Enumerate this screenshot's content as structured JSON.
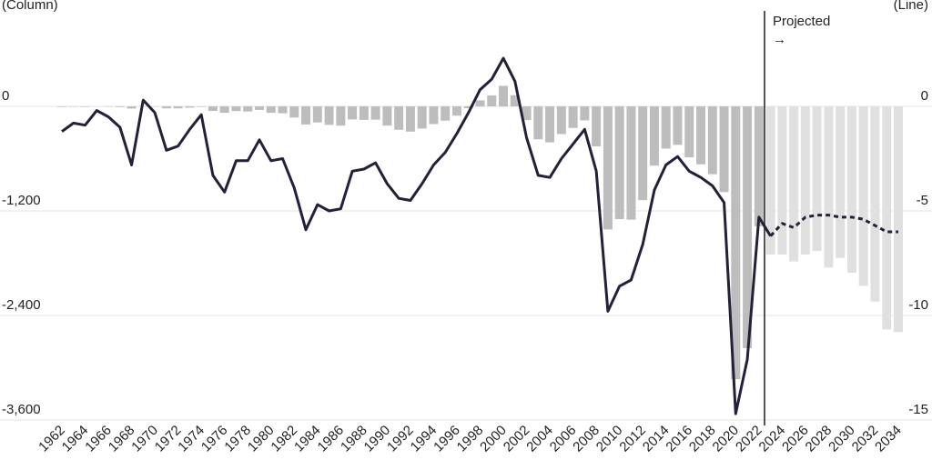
{
  "chart_data": {
    "type": "bar-line",
    "y_label": "(Column)",
    "y2_label": "(Line)",
    "annotation": {
      "text": "Projected",
      "arrow": "→"
    },
    "categories": [
      "1962",
      null,
      "1964",
      null,
      "1966",
      null,
      "1968",
      null,
      "1970",
      null,
      "1972",
      null,
      "1974",
      null,
      "1976",
      null,
      "1978",
      null,
      "1980",
      null,
      "1982",
      null,
      "1984",
      null,
      "1986",
      null,
      "1988",
      null,
      "1990",
      null,
      "1992",
      null,
      "1994",
      null,
      "1996",
      null,
      "1998",
      null,
      "2000",
      null,
      "2002",
      null,
      "2004",
      null,
      "2006",
      null,
      "2008",
      null,
      "2010",
      null,
      "2012",
      null,
      "2014",
      null,
      "2016",
      null,
      "2018",
      null,
      "2020",
      null,
      "2022",
      null,
      "2024",
      null,
      "2026",
      null,
      "2028",
      null,
      "2030",
      null,
      "2032",
      null,
      "2034"
    ],
    "series": [
      {
        "kind": "column",
        "color": "#bdbdbd",
        "values": [
          -7,
          -5,
          -6,
          -1,
          -4,
          -9,
          -25,
          3,
          -3,
          -23,
          -23,
          -15,
          -6,
          -53,
          -74,
          -54,
          -59,
          -41,
          -74,
          -79,
          -128,
          -208,
          -185,
          -212,
          -221,
          -150,
          -155,
          -153,
          -221,
          -269,
          -290,
          -255,
          -203,
          -164,
          -107,
          -22,
          69,
          126,
          236,
          128,
          -158,
          -378,
          -413,
          -318,
          -248,
          -161,
          -459,
          -1413,
          -1294,
          -1300,
          -1077,
          -680,
          -485,
          -442,
          -585,
          -665,
          -779,
          -984,
          -3132,
          -2775,
          -1376,
          null,
          null,
          null,
          null,
          null,
          null,
          null,
          null,
          null,
          null,
          null,
          null
        ]
      },
      {
        "kind": "column",
        "color": "#e0e0e0",
        "values": [
          null,
          null,
          null,
          null,
          null,
          null,
          null,
          null,
          null,
          null,
          null,
          null,
          null,
          null,
          null,
          null,
          null,
          null,
          null,
          null,
          null,
          null,
          null,
          null,
          null,
          null,
          null,
          null,
          null,
          null,
          null,
          null,
          null,
          null,
          null,
          null,
          null,
          null,
          null,
          null,
          null,
          null,
          null,
          null,
          null,
          null,
          null,
          null,
          null,
          null,
          null,
          null,
          null,
          null,
          null,
          null,
          null,
          null,
          null,
          null,
          null,
          -1700,
          -1700,
          -1780,
          -1700,
          -1660,
          -1850,
          -1740,
          -1910,
          -2060,
          -2240,
          -2560,
          -2590
        ]
      },
      {
        "kind": "line",
        "axis": "y2",
        "color": "#23213a",
        "dashed": false,
        "values": [
          -1.2,
          -0.8,
          -0.9,
          -0.2,
          -0.5,
          -1.0,
          -2.8,
          0.3,
          -0.3,
          -2.1,
          -1.9,
          -1.1,
          -0.4,
          -3.3,
          -4.1,
          -2.6,
          -2.6,
          -1.6,
          -2.6,
          -2.5,
          -3.9,
          -5.9,
          -4.7,
          -5.0,
          -4.9,
          -3.1,
          -3.0,
          -2.7,
          -3.7,
          -4.4,
          -4.5,
          -3.7,
          -2.8,
          -2.2,
          -1.3,
          -0.3,
          0.8,
          1.3,
          2.3,
          1.2,
          -1.5,
          -3.3,
          -3.4,
          -2.5,
          -1.8,
          -1.1,
          -3.1,
          -9.8,
          -8.6,
          -8.3,
          -6.6,
          -4.0,
          -2.8,
          -2.4,
          -3.1,
          -3.4,
          -3.8,
          -4.6,
          -14.7,
          -12.1,
          -5.3,
          -6.2,
          null,
          null,
          null,
          null,
          null,
          null,
          null,
          null,
          null,
          null,
          null
        ]
      },
      {
        "kind": "line",
        "axis": "y2",
        "color": "#23213a",
        "dashed": true,
        "values": [
          null,
          null,
          null,
          null,
          null,
          null,
          null,
          null,
          null,
          null,
          null,
          null,
          null,
          null,
          null,
          null,
          null,
          null,
          null,
          null,
          null,
          null,
          null,
          null,
          null,
          null,
          null,
          null,
          null,
          null,
          null,
          null,
          null,
          null,
          null,
          null,
          null,
          null,
          null,
          null,
          null,
          null,
          null,
          null,
          null,
          null,
          null,
          null,
          null,
          null,
          null,
          null,
          null,
          null,
          null,
          null,
          null,
          null,
          null,
          null,
          null,
          -6.2,
          -5.6,
          -5.8,
          -5.3,
          -5.2,
          -5.2,
          -5.3,
          -5.3,
          -5.4,
          -5.7,
          -6.0,
          -6.0
        ]
      }
    ],
    "ylim": [
      -3600,
      1200
    ],
    "yticks": [
      0,
      {
        "value": -1200,
        "label": "-1,200"
      },
      {
        "value": -2400,
        "label": "-2,400"
      },
      {
        "value": -3600,
        "label": "-3,600"
      }
    ],
    "y2lim": [
      -15,
      5
    ],
    "y2ticks": [
      0,
      -5,
      -10,
      -15
    ],
    "grid": true
  }
}
